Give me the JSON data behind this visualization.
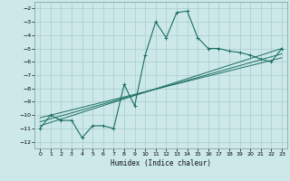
{
  "xlabel": "Humidex (Indice chaleur)",
  "xlim": [
    -0.5,
    23.5
  ],
  "ylim": [
    -12.5,
    -1.5
  ],
  "yticks": [
    -12,
    -11,
    -10,
    -9,
    -8,
    -7,
    -6,
    -5,
    -4,
    -3,
    -2
  ],
  "xticks": [
    0,
    1,
    2,
    3,
    4,
    5,
    6,
    7,
    8,
    9,
    10,
    11,
    12,
    13,
    14,
    15,
    16,
    17,
    18,
    19,
    20,
    21,
    22,
    23
  ],
  "bg_color": "#cce8e8",
  "grid_color": "#aacccc",
  "line_color": "#1a6e62",
  "main_curve_x": [
    0,
    1,
    2,
    3,
    4,
    5,
    6,
    7,
    8,
    9,
    10,
    11,
    12,
    13,
    14,
    15,
    16,
    17,
    18,
    19,
    20,
    21,
    22,
    23
  ],
  "main_curve_y": [
    -11.0,
    -10.0,
    -10.4,
    -10.4,
    -11.7,
    -10.8,
    -10.8,
    -11.0,
    -7.7,
    -9.3,
    -5.5,
    -3.0,
    -4.2,
    -2.3,
    -2.2,
    -4.2,
    -5.0,
    -5.0,
    -5.2,
    -5.3,
    -5.5,
    -5.8,
    -6.0,
    -5.0
  ],
  "line1_x": [
    0,
    23
  ],
  "line1_y": [
    -10.8,
    -5.0
  ],
  "line2_x": [
    0,
    23
  ],
  "line2_y": [
    -10.5,
    -5.4
  ],
  "line3_x": [
    0,
    23
  ],
  "line3_y": [
    -10.2,
    -5.7
  ]
}
